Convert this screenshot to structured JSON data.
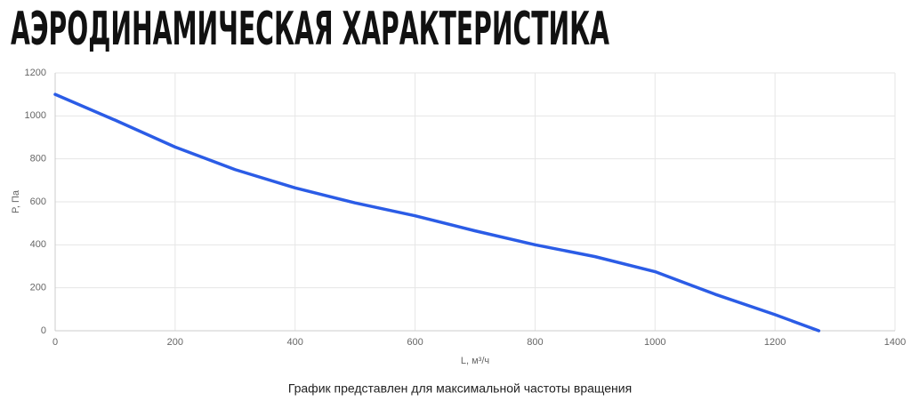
{
  "chart_data": {
    "type": "line",
    "title": "АЭРОДИНАМИЧЕСКАЯ ХАРАКТЕРИСТИКА",
    "caption": "График представлен для максимальной частоты вращения",
    "x_label": "L, м³/ч",
    "y_label": "P, Па",
    "x": [
      0,
      100,
      200,
      300,
      400,
      500,
      600,
      700,
      800,
      900,
      1000,
      1100,
      1200,
      1273
    ],
    "series": [
      {
        "color": "#2b5ce6",
        "values": [
          1100,
          980,
          855,
          750,
          665,
          595,
          535,
          465,
          400,
          345,
          275,
          170,
          75,
          0
        ]
      }
    ],
    "xlim": [
      0,
      1400
    ],
    "xticks": [
      0,
      200,
      400,
      600,
      800,
      1000,
      1200,
      1400
    ],
    "ylim": [
      0,
      1200
    ],
    "yticks": [
      0,
      200,
      400,
      600,
      800,
      1000,
      1200
    ],
    "grid": true
  }
}
